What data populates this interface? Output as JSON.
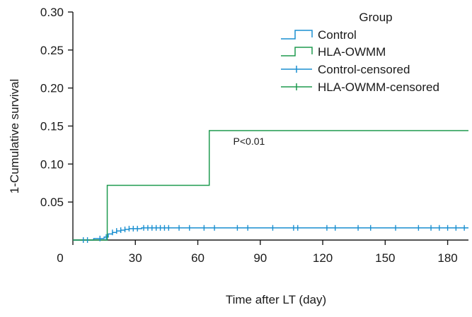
{
  "chart_data": {
    "type": "line",
    "subtype": "cumulative-incidence-step",
    "xlabel": "Time after LT (day)",
    "ylabel": "1-Cumulative survival",
    "xlim": [
      0,
      190
    ],
    "ylim": [
      0,
      0.3
    ],
    "xticks": [
      0,
      30,
      60,
      90,
      120,
      150,
      180
    ],
    "yticks": [
      0.05,
      0.1,
      0.15,
      0.2,
      0.25,
      0.3
    ],
    "ytick_labels": [
      "0.05",
      "0.10",
      "0.15",
      "0.20",
      "0.25",
      "0.30"
    ],
    "xtick_labels": [
      "0",
      "30",
      "60",
      "90",
      "120",
      "150",
      "180"
    ],
    "grid": false,
    "annotation": "P<0.01",
    "annotation_x": 77,
    "annotation_y": 0.12,
    "legend": {
      "title": "Group",
      "placement": "top-right",
      "entries": [
        {
          "label": "Control",
          "color": "#1a8fd0",
          "marker": "step"
        },
        {
          "label": "HLA-OWMM",
          "color": "#1e9a4f",
          "marker": "step"
        },
        {
          "label": "Control-censored",
          "color": "#1a8fd0",
          "marker": "censor"
        },
        {
          "label": "HLA-OWMM-censored",
          "color": "#1e9a4f",
          "marker": "censor"
        }
      ]
    },
    "series": [
      {
        "name": "Control",
        "color": "#1a8fd0",
        "steps": [
          [
            0,
            0
          ],
          [
            10,
            0.002
          ],
          [
            15,
            0.004
          ],
          [
            17,
            0.008
          ],
          [
            19,
            0.01
          ],
          [
            21,
            0.012
          ],
          [
            23,
            0.013
          ],
          [
            25,
            0.014
          ],
          [
            27,
            0.015
          ],
          [
            33,
            0.016
          ],
          [
            190,
            0.016
          ]
        ]
      },
      {
        "name": "HLA-OWMM",
        "color": "#1e9a4f",
        "steps": [
          [
            0,
            0
          ],
          [
            16.5,
            0.072
          ],
          [
            65.5,
            0.144
          ],
          [
            190,
            0.144
          ]
        ]
      },
      {
        "name": "Control-censored",
        "color": "#1a8fd0",
        "marker": "censor",
        "x": [
          5,
          7,
          13,
          16,
          19,
          21,
          23,
          25,
          27,
          29,
          31,
          34,
          36,
          38,
          40,
          42,
          44,
          46,
          51,
          56,
          63,
          68,
          79,
          84,
          96,
          106,
          108,
          122,
          126,
          137,
          143,
          155,
          166,
          172,
          176,
          180,
          184,
          188
        ],
        "y": [
          0,
          0,
          0.002,
          0.004,
          0.01,
          0.012,
          0.013,
          0.014,
          0.015,
          0.015,
          0.015,
          0.016,
          0.016,
          0.016,
          0.016,
          0.016,
          0.016,
          0.016,
          0.016,
          0.016,
          0.016,
          0.016,
          0.016,
          0.016,
          0.016,
          0.016,
          0.016,
          0.016,
          0.016,
          0.016,
          0.016,
          0.016,
          0.016,
          0.016,
          0.016,
          0.016,
          0.016,
          0.016
        ]
      }
    ]
  }
}
